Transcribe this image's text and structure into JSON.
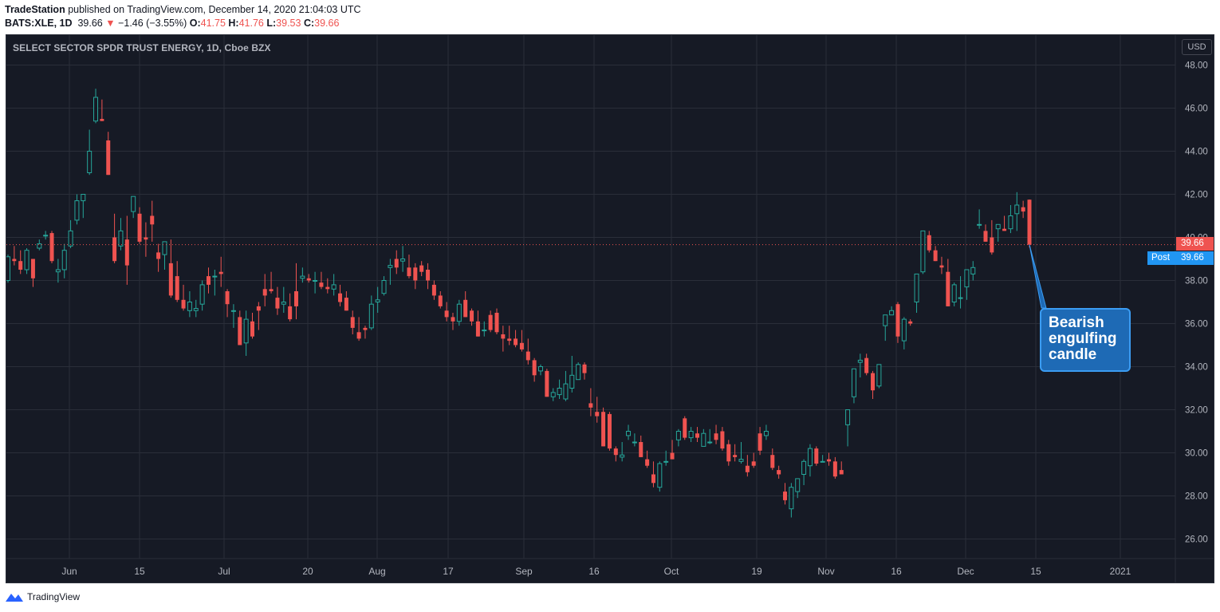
{
  "header": {
    "publisher": "TradeStation",
    "published_text": " published on TradingView.com, December 14, 2020 21:04:03 UTC",
    "symbol": "BATS:XLE, 1D",
    "last": "39.66",
    "change": "−1.46 (−3.55%)",
    "o_label": "O:",
    "o_value": "41.75",
    "h_label": "H:",
    "h_value": "41.76",
    "l_label": "L:",
    "l_value": "39.53",
    "c_label": "C:",
    "c_value": "39.66"
  },
  "chart_title": "SELECT SECTOR SPDR TRUST ENERGY, 1D, Cboe BZX",
  "currency": "USD",
  "price_labels": {
    "close": "39.66",
    "post_label": "Post",
    "post_value": "39.66"
  },
  "annotation": "Bearish engulfing candle",
  "footer": {
    "brand": "TradingView"
  },
  "colors": {
    "background": "#161a25",
    "up": "#26a69a",
    "down": "#ef5350",
    "grid": "#2a2e39",
    "text": "#b2b5be",
    "annotation": "#1e6ab5"
  },
  "chart_data": {
    "type": "candlestick",
    "ylim": [
      25,
      49
    ],
    "y_ticks": [
      "48.00",
      "46.00",
      "44.00",
      "42.00",
      "40.00",
      "38.00",
      "36.00",
      "34.00",
      "32.00",
      "30.00",
      "28.00",
      "26.00"
    ],
    "x_ticks": [
      "Jun",
      "15",
      "Jul",
      "20",
      "Aug",
      "17",
      "Sep",
      "16",
      "Oct",
      "19",
      "Nov",
      "16",
      "Dec",
      "15",
      "2021"
    ],
    "grid": true,
    "series": [
      {
        "name": "BATS:XLE",
        "values": [
          [
            38.0,
            39.2,
            37.9,
            39.1
          ],
          [
            39.0,
            39.6,
            38.7,
            38.9
          ],
          [
            38.9,
            39.4,
            38.3,
            38.5
          ],
          [
            38.5,
            39.5,
            38.3,
            39.4
          ],
          [
            39.0,
            39.0,
            37.7,
            38.1
          ],
          [
            39.5,
            39.9,
            39.4,
            39.7
          ],
          [
            40.1,
            40.3,
            39.9,
            40.1
          ],
          [
            40.2,
            40.3,
            38.8,
            38.9
          ],
          [
            38.4,
            39.0,
            37.9,
            38.5
          ],
          [
            38.5,
            39.7,
            38.1,
            39.4
          ],
          [
            39.6,
            40.8,
            39.5,
            40.3
          ],
          [
            40.8,
            42.0,
            40.6,
            41.7
          ],
          [
            41.7,
            42.0,
            40.9,
            42.0
          ],
          [
            43.0,
            45.0,
            42.9,
            44.0
          ],
          [
            45.4,
            46.9,
            45.3,
            46.5
          ],
          [
            45.5,
            46.4,
            45.4,
            45.4
          ],
          [
            44.5,
            44.9,
            42.9,
            42.9
          ],
          [
            40.0,
            41.1,
            38.8,
            38.9
          ],
          [
            39.6,
            40.9,
            39.4,
            40.3
          ],
          [
            39.9,
            41.0,
            37.8,
            38.7
          ],
          [
            41.2,
            41.9,
            40.9,
            41.9
          ],
          [
            41.1,
            41.4,
            39.7,
            39.8
          ],
          [
            40.0,
            40.7,
            39.1,
            39.9
          ],
          [
            41.0,
            41.7,
            39.8,
            40.6
          ],
          [
            39.3,
            39.7,
            38.4,
            39.0
          ],
          [
            39.2,
            39.7,
            38.5,
            39.8
          ],
          [
            38.8,
            39.9,
            37.2,
            37.3
          ],
          [
            38.2,
            38.9,
            37.0,
            37.1
          ],
          [
            37.1,
            37.8,
            36.6,
            36.7
          ],
          [
            36.6,
            37.5,
            36.3,
            37.0
          ],
          [
            36.6,
            37.1,
            36.3,
            36.7
          ],
          [
            36.9,
            38.0,
            36.6,
            37.8
          ],
          [
            38.2,
            38.6,
            37.4,
            37.8
          ],
          [
            38.2,
            38.5,
            37.3,
            38.2
          ],
          [
            38.4,
            39.1,
            37.7,
            38.3
          ],
          [
            37.5,
            37.6,
            36.3,
            36.9
          ],
          [
            36.6,
            36.9,
            35.8,
            36.6
          ],
          [
            36.3,
            36.6,
            35.0,
            35.0
          ],
          [
            35.1,
            36.6,
            34.5,
            36.2
          ],
          [
            36.1,
            36.5,
            35.3,
            35.4
          ],
          [
            36.8,
            37.0,
            35.7,
            36.6
          ],
          [
            37.6,
            38.3,
            36.8,
            37.3
          ],
          [
            37.6,
            38.4,
            37.4,
            37.5
          ],
          [
            37.2,
            37.7,
            36.4,
            36.7
          ],
          [
            36.9,
            37.7,
            36.5,
            37.0
          ],
          [
            36.8,
            37.4,
            36.1,
            36.2
          ],
          [
            37.5,
            38.8,
            36.2,
            36.8
          ],
          [
            38.1,
            38.6,
            37.9,
            38.2
          ],
          [
            38.1,
            38.3,
            37.9,
            38.0
          ],
          [
            38.0,
            38.4,
            37.4,
            38.0
          ],
          [
            37.9,
            38.4,
            37.6,
            37.7
          ],
          [
            37.7,
            38.1,
            37.4,
            37.6
          ],
          [
            37.6,
            38.3,
            37.3,
            37.8
          ],
          [
            37.4,
            37.8,
            36.8,
            37.0
          ],
          [
            37.2,
            37.5,
            36.6,
            36.6
          ],
          [
            36.3,
            36.6,
            35.5,
            35.8
          ],
          [
            35.6,
            36.3,
            35.2,
            35.3
          ],
          [
            35.8,
            35.9,
            35.3,
            35.7
          ],
          [
            35.8,
            37.3,
            35.7,
            36.9
          ],
          [
            37.0,
            37.7,
            36.5,
            37.1
          ],
          [
            37.4,
            38.2,
            37.3,
            38.0
          ],
          [
            38.6,
            39.0,
            37.8,
            38.7
          ],
          [
            39.0,
            39.4,
            38.3,
            38.6
          ],
          [
            38.9,
            39.6,
            38.4,
            39.0
          ],
          [
            38.6,
            39.2,
            38.1,
            38.2
          ],
          [
            38.6,
            38.8,
            37.6,
            38.0
          ],
          [
            38.7,
            38.9,
            38.2,
            38.4
          ],
          [
            38.5,
            38.8,
            37.6,
            38.0
          ],
          [
            37.8,
            38.0,
            37.1,
            37.3
          ],
          [
            37.3,
            37.5,
            36.7,
            36.8
          ],
          [
            36.6,
            37.0,
            36.1,
            36.3
          ],
          [
            36.3,
            36.5,
            35.7,
            36.1
          ],
          [
            36.1,
            37.1,
            35.9,
            36.9
          ],
          [
            37.1,
            37.5,
            36.3,
            36.3
          ],
          [
            36.6,
            36.7,
            35.9,
            36.1
          ],
          [
            36.1,
            36.6,
            35.4,
            35.4
          ],
          [
            35.7,
            36.1,
            35.4,
            35.7
          ],
          [
            36.4,
            36.6,
            35.6,
            35.7
          ],
          [
            36.5,
            36.7,
            35.5,
            35.6
          ],
          [
            35.5,
            35.9,
            34.7,
            35.3
          ],
          [
            35.3,
            35.9,
            35.0,
            35.2
          ],
          [
            35.3,
            35.7,
            34.9,
            35.0
          ],
          [
            35.1,
            35.7,
            34.7,
            34.8
          ],
          [
            34.7,
            35.3,
            34.1,
            34.3
          ],
          [
            34.3,
            34.4,
            33.3,
            33.6
          ],
          [
            33.8,
            34.1,
            33.6,
            34.0
          ],
          [
            33.8,
            33.9,
            32.6,
            32.6
          ],
          [
            32.6,
            33.0,
            32.4,
            32.8
          ],
          [
            32.7,
            33.4,
            32.5,
            33.0
          ],
          [
            32.5,
            33.8,
            32.4,
            33.2
          ],
          [
            33.0,
            34.5,
            32.8,
            33.6
          ],
          [
            33.4,
            34.2,
            33.4,
            34.1
          ],
          [
            34.1,
            34.2,
            33.4,
            33.7
          ],
          [
            32.3,
            33.0,
            31.7,
            32.1
          ],
          [
            31.9,
            32.6,
            31.4,
            31.7
          ],
          [
            31.9,
            32.1,
            30.3,
            30.3
          ],
          [
            31.8,
            31.9,
            30.1,
            30.2
          ],
          [
            30.2,
            30.3,
            29.6,
            29.9
          ],
          [
            29.8,
            30.5,
            29.6,
            29.9
          ],
          [
            30.8,
            31.3,
            30.6,
            31.0
          ],
          [
            30.5,
            30.9,
            30.3,
            30.5
          ],
          [
            30.5,
            30.8,
            29.8,
            29.8
          ],
          [
            29.7,
            30.1,
            29.3,
            29.4
          ],
          [
            29.0,
            29.6,
            28.4,
            28.6
          ],
          [
            28.4,
            29.6,
            28.2,
            29.5
          ],
          [
            29.6,
            30.1,
            29.4,
            29.6
          ],
          [
            30.0,
            30.6,
            29.7,
            29.7
          ],
          [
            30.6,
            31.1,
            30.3,
            31.0
          ],
          [
            31.6,
            31.7,
            30.6,
            30.7
          ],
          [
            30.7,
            31.2,
            30.5,
            31.0
          ],
          [
            30.9,
            31.2,
            30.5,
            30.7
          ],
          [
            30.3,
            31.1,
            30.5,
            30.9
          ],
          [
            30.5,
            31.1,
            30.4,
            30.5
          ],
          [
            30.9,
            31.3,
            30.4,
            30.6
          ],
          [
            31.0,
            31.2,
            30.1,
            30.2
          ],
          [
            30.4,
            30.6,
            29.4,
            29.6
          ],
          [
            29.9,
            30.4,
            29.6,
            29.8
          ],
          [
            29.6,
            30.5,
            29.5,
            29.7
          ],
          [
            29.4,
            29.9,
            28.9,
            29.1
          ],
          [
            29.6,
            30.0,
            29.3,
            29.4
          ],
          [
            30.9,
            31.2,
            29.9,
            30.1
          ],
          [
            30.8,
            31.3,
            30.6,
            31.0
          ],
          [
            29.9,
            30.2,
            29.2,
            29.3
          ],
          [
            29.2,
            29.4,
            28.8,
            29.0
          ],
          [
            28.2,
            28.6,
            27.6,
            27.8
          ],
          [
            27.4,
            28.6,
            27.0,
            28.4
          ],
          [
            28.2,
            28.8,
            27.9,
            28.8
          ],
          [
            29.0,
            29.7,
            28.5,
            29.6
          ],
          [
            29.4,
            30.4,
            28.9,
            30.2
          ],
          [
            30.2,
            30.3,
            29.4,
            29.5
          ],
          [
            29.6,
            29.9,
            29.6,
            29.6
          ],
          [
            29.7,
            30.0,
            29.4,
            29.6
          ],
          [
            29.6,
            29.8,
            28.8,
            28.9
          ],
          [
            29.2,
            29.6,
            29.0,
            29.0
          ],
          [
            31.3,
            31.9,
            30.3,
            32.0
          ],
          [
            32.6,
            33.8,
            32.3,
            33.9
          ],
          [
            34.2,
            34.6,
            33.5,
            34.3
          ],
          [
            34.4,
            34.6,
            33.6,
            33.7
          ],
          [
            33.7,
            33.8,
            32.5,
            32.9
          ],
          [
            33.1,
            34.1,
            33.0,
            34.1
          ],
          [
            35.9,
            36.2,
            35.2,
            36.4
          ],
          [
            36.4,
            36.8,
            36.4,
            36.6
          ],
          [
            36.9,
            37.0,
            35.1,
            35.4
          ],
          [
            35.2,
            36.3,
            34.8,
            36.2
          ],
          [
            36.1,
            36.2,
            35.9,
            36.0
          ],
          [
            37.0,
            37.5,
            36.5,
            38.3
          ],
          [
            38.4,
            40.3,
            38.3,
            40.3
          ],
          [
            40.1,
            40.3,
            39.3,
            39.4
          ],
          [
            39.4,
            39.6,
            38.9,
            38.9
          ],
          [
            38.7,
            39.1,
            38.3,
            38.6
          ],
          [
            38.4,
            39.0,
            36.8,
            36.8
          ],
          [
            37.0,
            37.9,
            36.8,
            37.8
          ],
          [
            37.2,
            38.2,
            36.7,
            37.2
          ],
          [
            37.7,
            38.5,
            37.1,
            38.5
          ],
          [
            38.3,
            38.9,
            38.0,
            38.6
          ],
          [
            40.6,
            41.3,
            40.4,
            40.6
          ],
          [
            40.3,
            40.6,
            39.8,
            39.8
          ],
          [
            40.0,
            40.8,
            39.2,
            39.3
          ],
          [
            40.4,
            40.6,
            39.8,
            40.6
          ],
          [
            40.4,
            41.0,
            40.3,
            40.3
          ],
          [
            40.4,
            41.5,
            40.2,
            41.0
          ],
          [
            41.1,
            42.1,
            40.3,
            41.5
          ],
          [
            41.4,
            41.7,
            40.9,
            41.2
          ],
          [
            41.75,
            41.76,
            39.53,
            39.66
          ]
        ]
      }
    ]
  }
}
